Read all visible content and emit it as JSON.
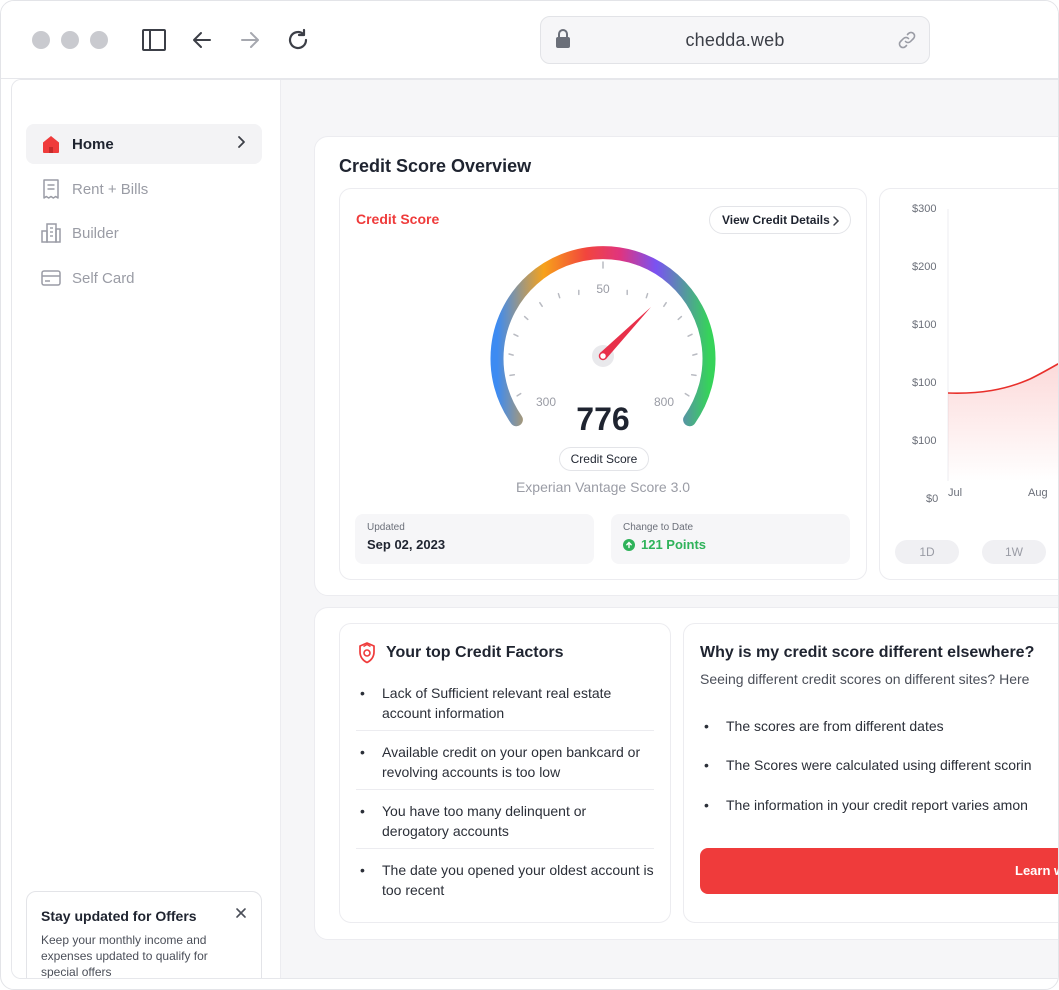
{
  "browser": {
    "url": "chedda.web"
  },
  "sidebar": {
    "items": [
      {
        "label": "Home",
        "icon": "home-icon",
        "active": true
      },
      {
        "label": "Rent + Bills",
        "icon": "receipt-icon",
        "active": false
      },
      {
        "label": "Builder",
        "icon": "building-icon",
        "active": false
      },
      {
        "label": "Self Card",
        "icon": "card-icon",
        "active": false
      }
    ],
    "offer": {
      "title": "Stay updated for Offers",
      "body": "Keep your monthly income and expenses updated to qualify for special offers"
    }
  },
  "overview": {
    "title": "Credit Score Overview",
    "score_card": {
      "label": "Credit Score",
      "details_button": "View Credit Details",
      "gauge": {
        "tick_mid": "50",
        "tick_min": "300",
        "tick_max": "800"
      },
      "score": "776",
      "score_tag": "Credit Score",
      "model": "Experian Vantage Score 3.0",
      "updated_label": "Updated",
      "updated_value": "Sep 02, 2023",
      "change_label": "Change to Date",
      "change_value": "121 Points"
    },
    "history": {
      "y_ticks": [
        "$300",
        "$200",
        "$100",
        "$100",
        "$100",
        "$0"
      ],
      "x_ticks": [
        "Jul",
        "Aug"
      ],
      "ranges": [
        "1D",
        "1W"
      ]
    }
  },
  "factors": {
    "title": "Your top Credit Factors",
    "items": [
      "Lack of Sufficient relevant real estate account information",
      "Available credit on your open bankcard or revolving accounts is too low",
      "You have too many delinquent or derogatory accounts",
      "The date you opened your oldest account is too recent"
    ]
  },
  "why": {
    "title": "Why is my credit score different elsewhere?",
    "subtitle": "Seeing different credit scores on different sites? Here",
    "items": [
      "The scores are from different dates",
      "The Scores were calculated using different scorin",
      "The information in your credit report varies amon"
    ],
    "button": "Learn w"
  },
  "colors": {
    "accent": "#ef3b3b",
    "positive": "#2fb35a"
  }
}
